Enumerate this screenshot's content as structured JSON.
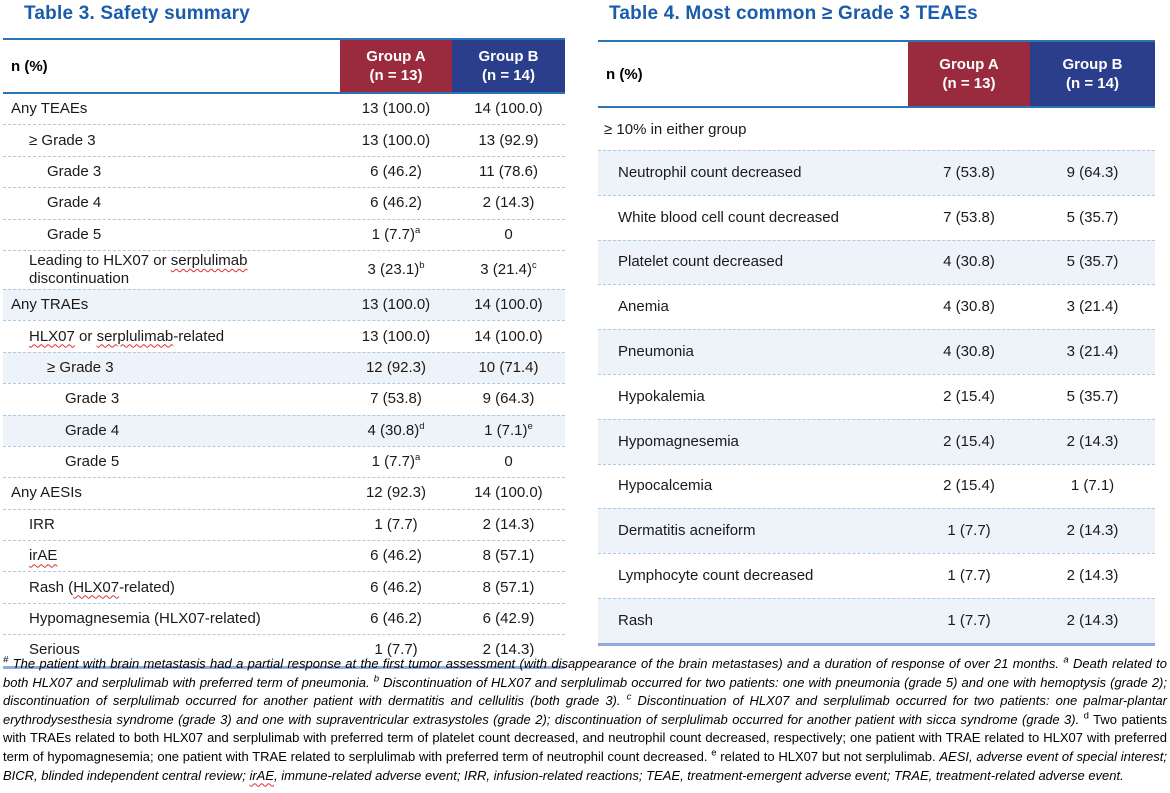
{
  "colors": {
    "title_blue": "#1a5cab",
    "group_a_header_bg": "#9a2b3e",
    "group_b_header_bg": "#2b3e8c",
    "header_rule_blue": "#2e74b5",
    "bottom_rule_blue": "#8faadc",
    "row_divider_blue": "#a9cbe6",
    "shaded_row_bg": "#edf3f9",
    "spellcheck_red": "#e03131"
  },
  "table3": {
    "title": "Table 3. Safety summary",
    "col_header": "n (%)",
    "group_a": {
      "line1": "Group A",
      "line2": "(n = 13)"
    },
    "group_b": {
      "line1": "Group B",
      "line2": "(n = 14)"
    },
    "rows": [
      {
        "label": [
          {
            "t": "Any TEAEs"
          }
        ],
        "indent": 0,
        "a": {
          "v": "13 (100.0)"
        },
        "b": {
          "v": "14 (100.0)"
        }
      },
      {
        "label": [
          {
            "t": "≥ Grade 3"
          }
        ],
        "indent": 1,
        "a": {
          "v": "13 (100.0)"
        },
        "b": {
          "v": "13 (92.9)"
        }
      },
      {
        "label": [
          {
            "t": "Grade 3"
          }
        ],
        "indent": 2,
        "a": {
          "v": "6 (46.2)"
        },
        "b": {
          "v": "11 (78.6)"
        }
      },
      {
        "label": [
          {
            "t": "Grade 4"
          }
        ],
        "indent": 2,
        "a": {
          "v": "6 (46.2)"
        },
        "b": {
          "v": "2 (14.3)"
        }
      },
      {
        "label": [
          {
            "t": "Grade 5"
          }
        ],
        "indent": 2,
        "a": {
          "v": "1 (7.7)",
          "sup": "a"
        },
        "b": {
          "v": "0"
        }
      },
      {
        "label": [
          {
            "t": "Leading to HLX07 or "
          },
          {
            "t": "serplulimab",
            "wavy": true
          },
          {
            "t": " discontinuation"
          }
        ],
        "indent": 1,
        "a": {
          "v": "3 (23.1)",
          "sup": "b"
        },
        "b": {
          "v": "3 (21.4)",
          "sup": "c"
        }
      },
      {
        "label": [
          {
            "t": "Any TRAEs"
          }
        ],
        "indent": 0,
        "shaded": true,
        "a": {
          "v": "13 (100.0)"
        },
        "b": {
          "v": "14 (100.0)"
        }
      },
      {
        "label": [
          {
            "t": "HLX07",
            "wavy": true
          },
          {
            "t": " or "
          },
          {
            "t": "serplulimab",
            "wavy": true
          },
          {
            "t": "-related"
          }
        ],
        "indent": 1,
        "a": {
          "v": "13 (100.0)"
        },
        "b": {
          "v": "14 (100.0)"
        }
      },
      {
        "label": [
          {
            "t": "≥ Grade 3"
          }
        ],
        "indent": 2,
        "shaded": true,
        "a": {
          "v": "12 (92.3)"
        },
        "b": {
          "v": "10 (71.4)"
        }
      },
      {
        "label": [
          {
            "t": "Grade 3"
          }
        ],
        "indent": 3,
        "a": {
          "v": "7 (53.8)"
        },
        "b": {
          "v": "9 (64.3)"
        }
      },
      {
        "label": [
          {
            "t": "Grade 4"
          }
        ],
        "indent": 3,
        "shaded": true,
        "a": {
          "v": "4 (30.8)",
          "sup": "d"
        },
        "b": {
          "v": "1 (7.1)",
          "sup": "e"
        }
      },
      {
        "label": [
          {
            "t": "Grade 5"
          }
        ],
        "indent": 3,
        "a": {
          "v": "1 (7.7)",
          "sup": "a"
        },
        "b": {
          "v": "0"
        }
      },
      {
        "label": [
          {
            "t": "Any AESIs"
          }
        ],
        "indent": 0,
        "a": {
          "v": "12 (92.3)"
        },
        "b": {
          "v": "14 (100.0)"
        }
      },
      {
        "label": [
          {
            "t": "IRR"
          }
        ],
        "indent": 1,
        "a": {
          "v": "1 (7.7)"
        },
        "b": {
          "v": "2 (14.3)"
        }
      },
      {
        "label": [
          {
            "t": "irAE",
            "wavy": true
          }
        ],
        "indent": 1,
        "a": {
          "v": "6 (46.2)"
        },
        "b": {
          "v": "8 (57.1)"
        }
      },
      {
        "label": [
          {
            "t": "Rash ("
          },
          {
            "t": "HLX07",
            "wavy": true
          },
          {
            "t": "-related)"
          }
        ],
        "indent": 1,
        "a": {
          "v": "6 (46.2)"
        },
        "b": {
          "v": "8 (57.1)"
        }
      },
      {
        "label": [
          {
            "t": "Hypomagnesemia (HLX07-related)"
          }
        ],
        "indent": 1,
        "a": {
          "v": "6 (46.2)"
        },
        "b": {
          "v": "6 (42.9)"
        }
      },
      {
        "label": [
          {
            "t": "Serious"
          }
        ],
        "indent": 1,
        "a": {
          "v": "1 (7.7)"
        },
        "b": {
          "v": "2 (14.3)"
        }
      }
    ]
  },
  "table4": {
    "title": "Table 4. Most common ≥ Grade 3 TEAEs",
    "col_header": "n (%)",
    "group_a": {
      "line1": "Group A",
      "line2": "(n = 13)"
    },
    "group_b": {
      "line1": "Group B",
      "line2": "(n = 14)"
    },
    "group_row": "≥ 10% in either group",
    "rows": [
      {
        "label": [
          {
            "t": "Neutrophil count decreased"
          }
        ],
        "indent": 1,
        "shaded": true,
        "a": {
          "v": "7 (53.8)"
        },
        "b": {
          "v": "9 (64.3)"
        }
      },
      {
        "label": [
          {
            "t": "White blood cell count decreased"
          }
        ],
        "indent": 1,
        "a": {
          "v": "7 (53.8)"
        },
        "b": {
          "v": "5 (35.7)"
        }
      },
      {
        "label": [
          {
            "t": "Platelet count decreased"
          }
        ],
        "indent": 1,
        "shaded": true,
        "a": {
          "v": "4 (30.8)"
        },
        "b": {
          "v": "5 (35.7)"
        }
      },
      {
        "label": [
          {
            "t": "Anemia"
          }
        ],
        "indent": 1,
        "a": {
          "v": "4 (30.8)"
        },
        "b": {
          "v": "3 (21.4)"
        }
      },
      {
        "label": [
          {
            "t": "Pneumonia"
          }
        ],
        "indent": 1,
        "shaded": true,
        "a": {
          "v": "4 (30.8)"
        },
        "b": {
          "v": "3 (21.4)"
        }
      },
      {
        "label": [
          {
            "t": "Hypokalemia"
          }
        ],
        "indent": 1,
        "a": {
          "v": "2 (15.4)"
        },
        "b": {
          "v": "5 (35.7)"
        }
      },
      {
        "label": [
          {
            "t": "Hypomagnesemia"
          }
        ],
        "indent": 1,
        "shaded": true,
        "a": {
          "v": "2 (15.4)"
        },
        "b": {
          "v": "2 (14.3)"
        }
      },
      {
        "label": [
          {
            "t": "Hypocalcemia"
          }
        ],
        "indent": 1,
        "a": {
          "v": "2 (15.4)"
        },
        "b": {
          "v": "1 (7.1)"
        }
      },
      {
        "label": [
          {
            "t": "Dermatitis acneiform"
          }
        ],
        "indent": 1,
        "shaded": true,
        "a": {
          "v": "1 (7.7)"
        },
        "b": {
          "v": "2 (14.3)"
        }
      },
      {
        "label": [
          {
            "t": "Lymphocyte count decreased"
          }
        ],
        "indent": 1,
        "a": {
          "v": "1 (7.7)"
        },
        "b": {
          "v": "2 (14.3)"
        }
      },
      {
        "label": [
          {
            "t": "Rash"
          }
        ],
        "indent": 1,
        "shaded": true,
        "a": {
          "v": "1 (7.7)"
        },
        "b": {
          "v": "2 (14.3)"
        }
      }
    ]
  },
  "footnote": {
    "segments": [
      {
        "t": "#",
        "sup": true
      },
      {
        "t": " The patient with brain metastasis had a partial response at the first tumor assessment (with disappearance of the brain metastases) and a duration of response of over 21 months. "
      },
      {
        "t": "a",
        "sup": true
      },
      {
        "t": " Death related to both HLX07 and serplulimab with preferred term of pneumonia. "
      },
      {
        "t": "b",
        "sup": true
      },
      {
        "t": " Discontinuation of HLX07 and serplulimab occurred for two patients: one with pneumonia (grade 5) and one with hemoptysis (grade 2); discontinuation of serplulimab occurred for another patient with dermatitis and cellulitis (both grade 3). "
      },
      {
        "t": "c",
        "sup": true
      },
      {
        "t": " Discontinuation of HLX07 and serplulimab occurred for two patients: one palmar-plantar erythrodysesthesia syndrome (grade 3) and one with supraventricular extrasystoles (grade 2); discontinuation of serplulimab occurred for another patient with sicca syndrome (grade 3). "
      },
      {
        "t": "d",
        "sup": true,
        "italic": false
      },
      {
        "t": " Two patients with TRAEs related to both HLX07 and serplulimab with preferred term of platelet count decreased, and neutrophil count decreased, respectively; one patient with TRAE related to HLX07 with preferred term of hypomagnesemia; one patient with TRAE related to serplulimab with preferred term of neutrophil count decreased. ",
        "italic": false
      },
      {
        "t": "e",
        "sup": true,
        "italic": false
      },
      {
        "t": " related to HLX07 but not serplulimab. ",
        "italic": false
      },
      {
        "t": "AESI, adverse event of special interest; BICR, blinded independent central review; "
      },
      {
        "t": "irAE",
        "wavy": true
      },
      {
        "t": ", immune-related adverse event; IRR, infusion-related reactions; TEAE, treatment-emergent adverse event; TRAE, treatment-related adverse event."
      }
    ]
  }
}
